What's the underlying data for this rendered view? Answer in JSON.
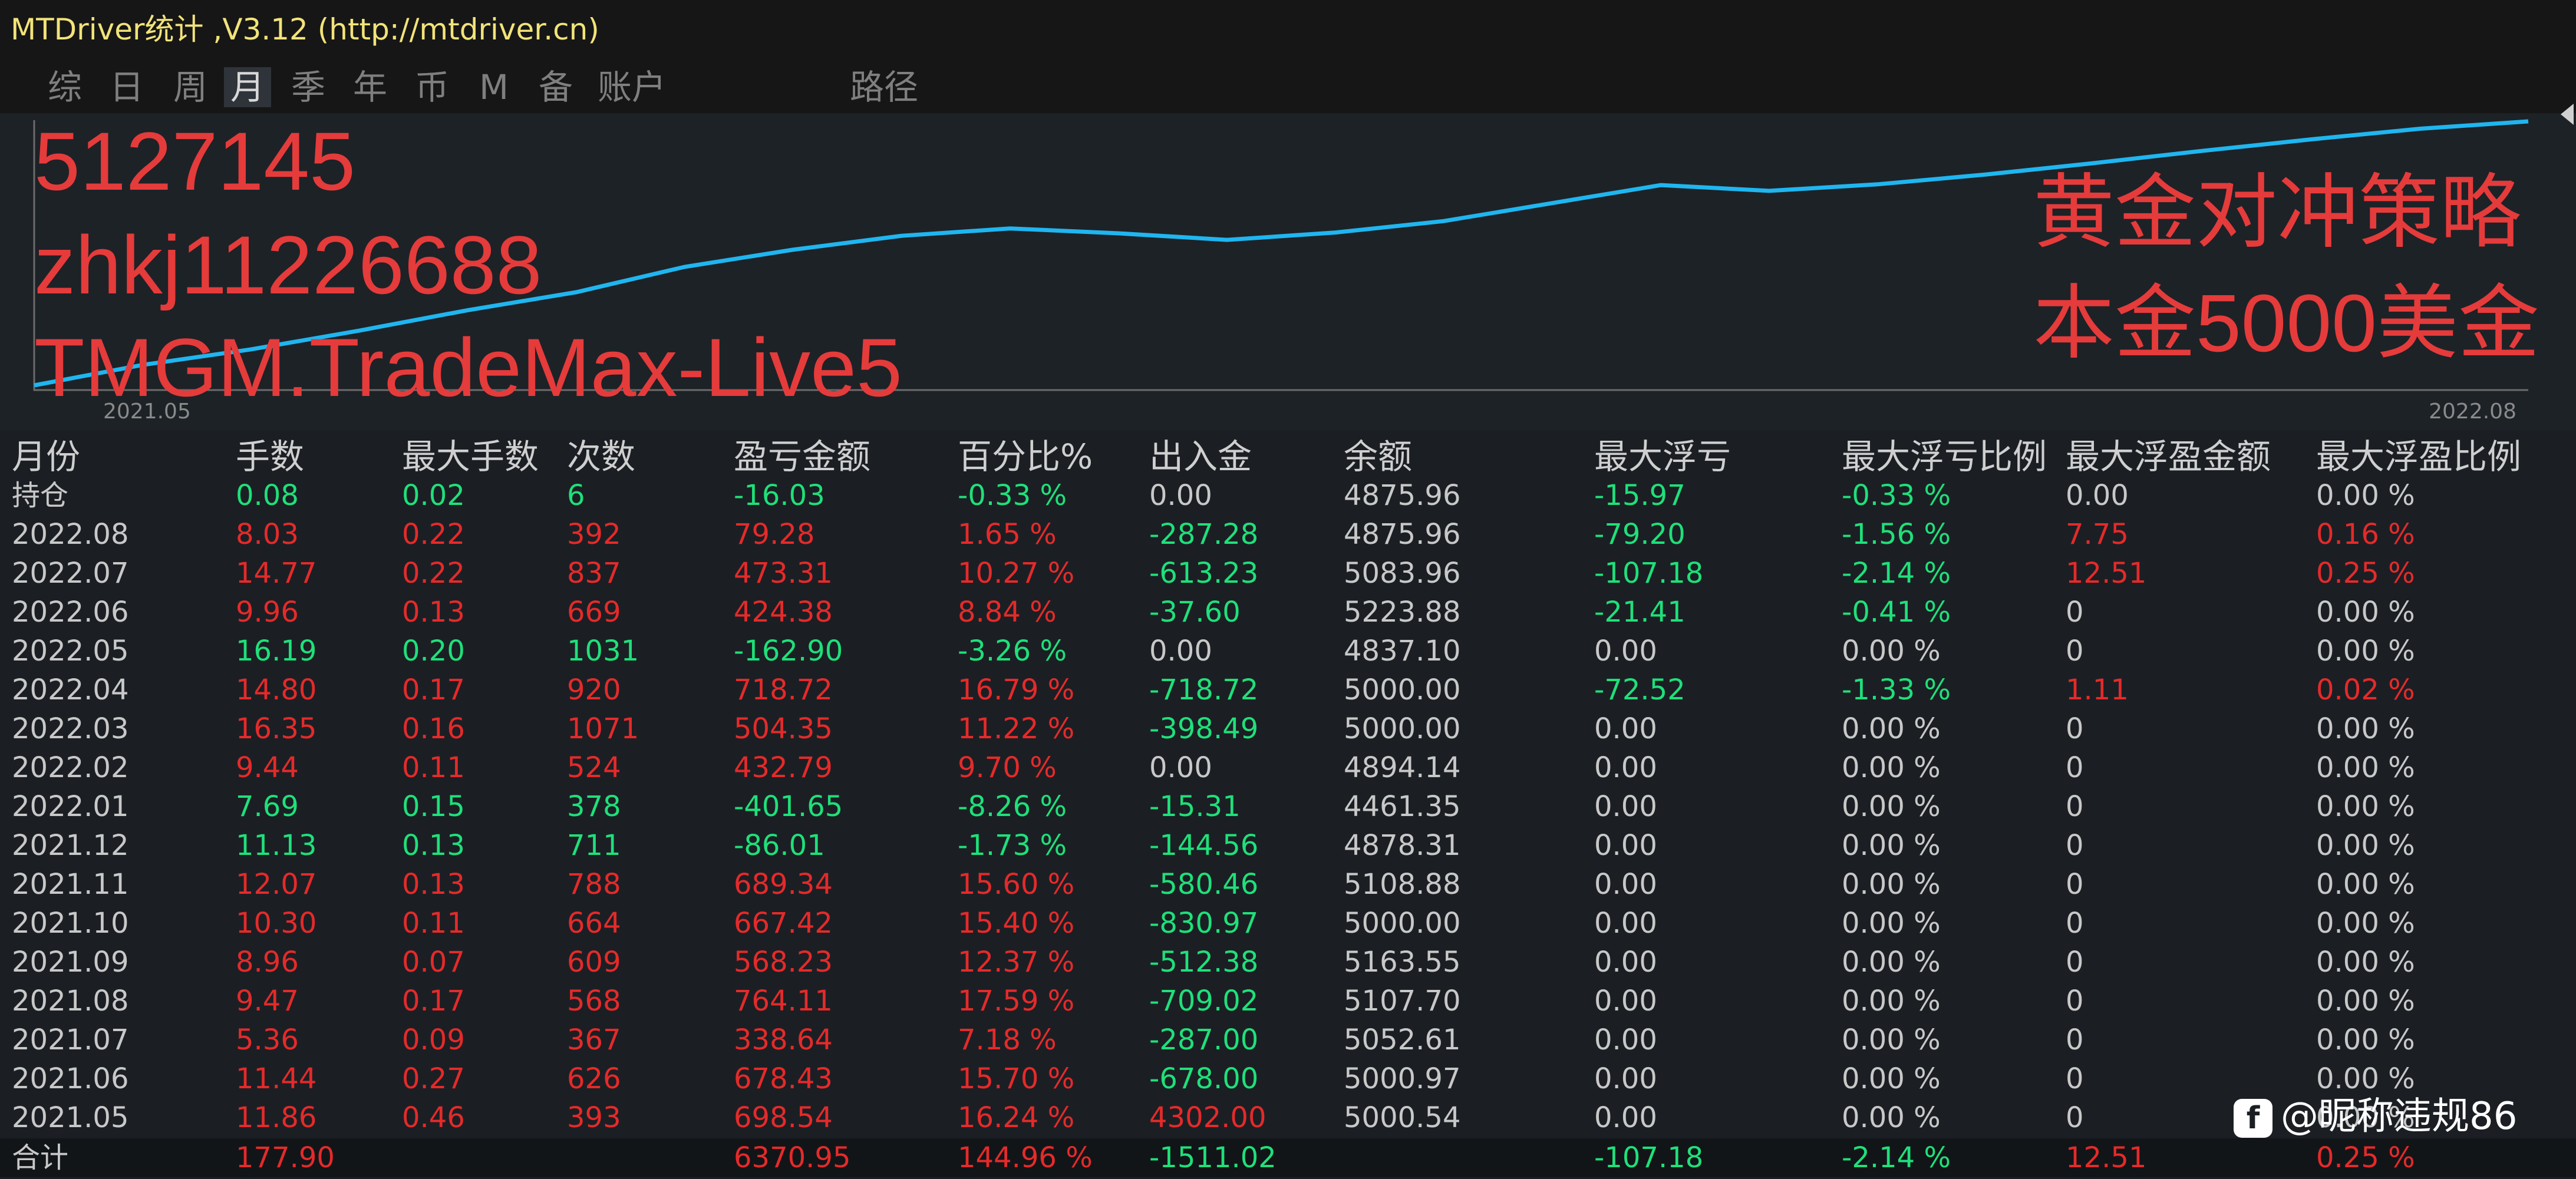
{
  "window": {
    "title": "MTDriver统计 ,V3.12 (http://mtdriver.cn)"
  },
  "tabs": [
    {
      "label": "综",
      "active": false
    },
    {
      "label": "日",
      "active": false
    },
    {
      "label": "周",
      "active": false
    },
    {
      "label": "月",
      "active": true
    },
    {
      "label": "季",
      "active": false
    },
    {
      "label": "年",
      "active": false
    },
    {
      "label": "币",
      "active": false
    },
    {
      "label": "M",
      "active": false
    },
    {
      "label": "备",
      "active": false
    },
    {
      "label": "账户",
      "active": false
    },
    {
      "label": "路径",
      "active": false
    }
  ],
  "overlay": {
    "account": "5127145",
    "user": "zhkj11226688",
    "server": "TMGM.TradeMax-Live5",
    "strategy": "黄金对冲策略",
    "capital": "本金5000美金"
  },
  "chart_data": {
    "type": "line",
    "x_start_label": "2021.05",
    "x_end_label": "2022.08",
    "series": [
      {
        "values": [
          0,
          2.5,
          4.4,
          6.7,
          9.2,
          11.4,
          14.5,
          16.6,
          18.3,
          19.2,
          18.6,
          17.8,
          18.7,
          20.1,
          22.3,
          24.5,
          23.8,
          24.6,
          25.8,
          27.2,
          28.7,
          30.1,
          31.4,
          32.3
        ]
      }
    ],
    "colors": {
      "line": "#1fb6f0",
      "axis": "#6b6b6b"
    }
  },
  "table": {
    "columns": [
      "月份",
      "手数",
      "最大手数",
      "次数",
      "盈亏金额",
      "百分比%",
      "出入金",
      "余额",
      "最大浮亏",
      "最大浮亏比例",
      "最大浮盈金额",
      "最大浮盈比例"
    ],
    "rows": [
      {
        "cells": [
          "持仓",
          "0.08",
          "0.02",
          "6",
          "-16.03",
          "-0.33 %",
          "0.00",
          "4875.96",
          "-15.97",
          "-0.33 %",
          "0.00",
          "0.00 %"
        ],
        "colors": [
          "w",
          "g",
          "g",
          "g",
          "g",
          "g",
          "w",
          "w",
          "g",
          "g",
          "w",
          "w"
        ]
      },
      {
        "cells": [
          "2022.08",
          "8.03",
          "0.22",
          "392",
          "79.28",
          "1.65 %",
          "-287.28",
          "4875.96",
          "-79.20",
          "-1.56 %",
          "7.75",
          "0.16 %"
        ],
        "colors": [
          "w",
          "r",
          "r",
          "r",
          "r",
          "r",
          "g",
          "w",
          "g",
          "g",
          "r",
          "r"
        ]
      },
      {
        "cells": [
          "2022.07",
          "14.77",
          "0.22",
          "837",
          "473.31",
          "10.27 %",
          "-613.23",
          "5083.96",
          "-107.18",
          "-2.14 %",
          "12.51",
          "0.25 %"
        ],
        "colors": [
          "w",
          "r",
          "r",
          "r",
          "r",
          "r",
          "g",
          "w",
          "g",
          "g",
          "r",
          "r"
        ]
      },
      {
        "cells": [
          "2022.06",
          "9.96",
          "0.13",
          "669",
          "424.38",
          "8.84 %",
          "-37.60",
          "5223.88",
          "-21.41",
          "-0.41 %",
          "0",
          "0.00 %"
        ],
        "colors": [
          "w",
          "r",
          "r",
          "r",
          "r",
          "r",
          "g",
          "w",
          "g",
          "g",
          "w",
          "w"
        ]
      },
      {
        "cells": [
          "2022.05",
          "16.19",
          "0.20",
          "1031",
          "-162.90",
          "-3.26 %",
          "0.00",
          "4837.10",
          "0.00",
          "0.00 %",
          "0",
          "0.00 %"
        ],
        "colors": [
          "w",
          "g",
          "g",
          "g",
          "g",
          "g",
          "w",
          "w",
          "w",
          "w",
          "w",
          "w"
        ]
      },
      {
        "cells": [
          "2022.04",
          "14.80",
          "0.17",
          "920",
          "718.72",
          "16.79 %",
          "-718.72",
          "5000.00",
          "-72.52",
          "-1.33 %",
          "1.11",
          "0.02 %"
        ],
        "colors": [
          "w",
          "r",
          "r",
          "r",
          "r",
          "r",
          "g",
          "w",
          "g",
          "g",
          "r",
          "r"
        ]
      },
      {
        "cells": [
          "2022.03",
          "16.35",
          "0.16",
          "1071",
          "504.35",
          "11.22 %",
          "-398.49",
          "5000.00",
          "0.00",
          "0.00 %",
          "0",
          "0.00 %"
        ],
        "colors": [
          "w",
          "r",
          "r",
          "r",
          "r",
          "r",
          "g",
          "w",
          "w",
          "w",
          "w",
          "w"
        ]
      },
      {
        "cells": [
          "2022.02",
          "9.44",
          "0.11",
          "524",
          "432.79",
          "9.70 %",
          "0.00",
          "4894.14",
          "0.00",
          "0.00 %",
          "0",
          "0.00 %"
        ],
        "colors": [
          "w",
          "r",
          "r",
          "r",
          "r",
          "r",
          "w",
          "w",
          "w",
          "w",
          "w",
          "w"
        ]
      },
      {
        "cells": [
          "2022.01",
          "7.69",
          "0.15",
          "378",
          "-401.65",
          "-8.26 %",
          "-15.31",
          "4461.35",
          "0.00",
          "0.00 %",
          "0",
          "0.00 %"
        ],
        "colors": [
          "w",
          "g",
          "g",
          "g",
          "g",
          "g",
          "g",
          "w",
          "w",
          "w",
          "w",
          "w"
        ]
      },
      {
        "cells": [
          "2021.12",
          "11.13",
          "0.13",
          "711",
          "-86.01",
          "-1.73 %",
          "-144.56",
          "4878.31",
          "0.00",
          "0.00 %",
          "0",
          "0.00 %"
        ],
        "colors": [
          "w",
          "g",
          "g",
          "g",
          "g",
          "g",
          "g",
          "w",
          "w",
          "w",
          "w",
          "w"
        ]
      },
      {
        "cells": [
          "2021.11",
          "12.07",
          "0.13",
          "788",
          "689.34",
          "15.60 %",
          "-580.46",
          "5108.88",
          "0.00",
          "0.00 %",
          "0",
          "0.00 %"
        ],
        "colors": [
          "w",
          "r",
          "r",
          "r",
          "r",
          "r",
          "g",
          "w",
          "w",
          "w",
          "w",
          "w"
        ]
      },
      {
        "cells": [
          "2021.10",
          "10.30",
          "0.11",
          "664",
          "667.42",
          "15.40 %",
          "-830.97",
          "5000.00",
          "0.00",
          "0.00 %",
          "0",
          "0.00 %"
        ],
        "colors": [
          "w",
          "r",
          "r",
          "r",
          "r",
          "r",
          "g",
          "w",
          "w",
          "w",
          "w",
          "w"
        ]
      },
      {
        "cells": [
          "2021.09",
          "8.96",
          "0.07",
          "609",
          "568.23",
          "12.37 %",
          "-512.38",
          "5163.55",
          "0.00",
          "0.00 %",
          "0",
          "0.00 %"
        ],
        "colors": [
          "w",
          "r",
          "r",
          "r",
          "r",
          "r",
          "g",
          "w",
          "w",
          "w",
          "w",
          "w"
        ]
      },
      {
        "cells": [
          "2021.08",
          "9.47",
          "0.17",
          "568",
          "764.11",
          "17.59 %",
          "-709.02",
          "5107.70",
          "0.00",
          "0.00 %",
          "0",
          "0.00 %"
        ],
        "colors": [
          "w",
          "r",
          "r",
          "r",
          "r",
          "r",
          "g",
          "w",
          "w",
          "w",
          "w",
          "w"
        ]
      },
      {
        "cells": [
          "2021.07",
          "5.36",
          "0.09",
          "367",
          "338.64",
          "7.18 %",
          "-287.00",
          "5052.61",
          "0.00",
          "0.00 %",
          "0",
          "0.00 %"
        ],
        "colors": [
          "w",
          "r",
          "r",
          "r",
          "r",
          "r",
          "g",
          "w",
          "w",
          "w",
          "w",
          "w"
        ]
      },
      {
        "cells": [
          "2021.06",
          "11.44",
          "0.27",
          "626",
          "678.43",
          "15.70 %",
          "-678.00",
          "5000.97",
          "0.00",
          "0.00 %",
          "0",
          "0.00 %"
        ],
        "colors": [
          "w",
          "r",
          "r",
          "r",
          "r",
          "r",
          "g",
          "w",
          "w",
          "w",
          "w",
          "w"
        ]
      },
      {
        "cells": [
          "2021.05",
          "11.86",
          "0.46",
          "393",
          "698.54",
          "16.24 %",
          "4302.00",
          "5000.54",
          "0.00",
          "0.00 %",
          "0",
          "0.00 %"
        ],
        "colors": [
          "w",
          "r",
          "r",
          "r",
          "r",
          "r",
          "r",
          "w",
          "w",
          "w",
          "w",
          "w"
        ]
      }
    ],
    "total": {
      "cells": [
        "合计",
        "177.90",
        "",
        "",
        "6370.95",
        "144.96 %",
        "-1511.02",
        "",
        "-107.18",
        "-2.14 %",
        "12.51",
        "0.25 %"
      ],
      "colors": [
        "w",
        "r",
        "w",
        "w",
        "r",
        "r",
        "g",
        "w",
        "g",
        "g",
        "r",
        "r"
      ]
    }
  },
  "watermark": {
    "logo": "f",
    "text": "@昵称违规86"
  }
}
